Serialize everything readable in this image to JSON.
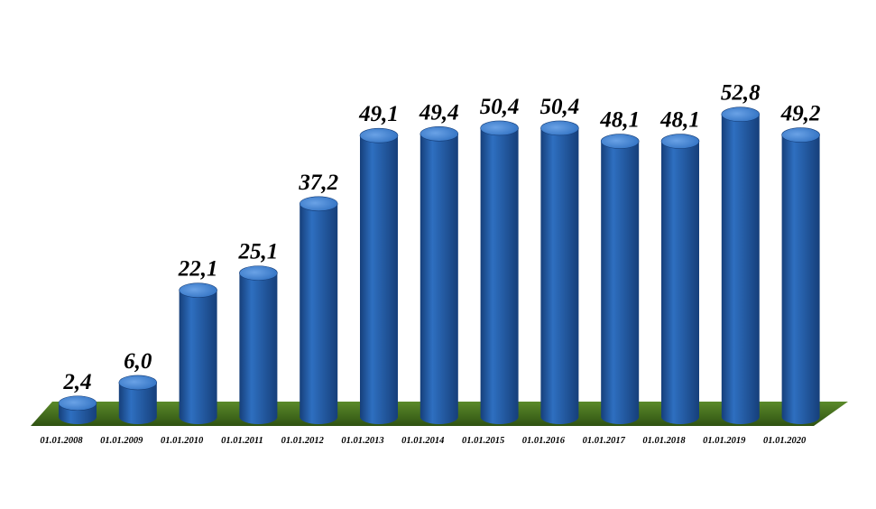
{
  "chart_data": {
    "type": "bar",
    "title": "",
    "xlabel": "",
    "ylabel": "",
    "categories": [
      "01.01.2008",
      "01.01.2009",
      "01.01.2010",
      "01.01.2011",
      "01.01.2012",
      "01.01.2013",
      "01.01.2014",
      "01.01.2015",
      "01.01.2016",
      "01.01.2017",
      "01.01.2018",
      "01.01.2019",
      "01.01.2020"
    ],
    "values": [
      2.4,
      6.0,
      22.1,
      25.1,
      37.2,
      49.1,
      49.4,
      50.4,
      50.4,
      48.1,
      48.1,
      52.8,
      49.2
    ],
    "value_labels": [
      "2,4",
      "6,0",
      "22,1",
      "25,1",
      "37,2",
      "49,1",
      "49,4",
      "50,4",
      "50,4",
      "48,1",
      "48,1",
      "52,8",
      "49,2"
    ],
    "ylim": [
      0,
      60
    ],
    "grid": false,
    "legend": "none",
    "style": "3d-cylinder",
    "colors": {
      "bar": "#2e6fc0",
      "bar_dark": "#163f7a",
      "bar_light": "#6aa2e6",
      "floor": "#5b8a2a",
      "floor_dark": "#2f5212"
    }
  }
}
